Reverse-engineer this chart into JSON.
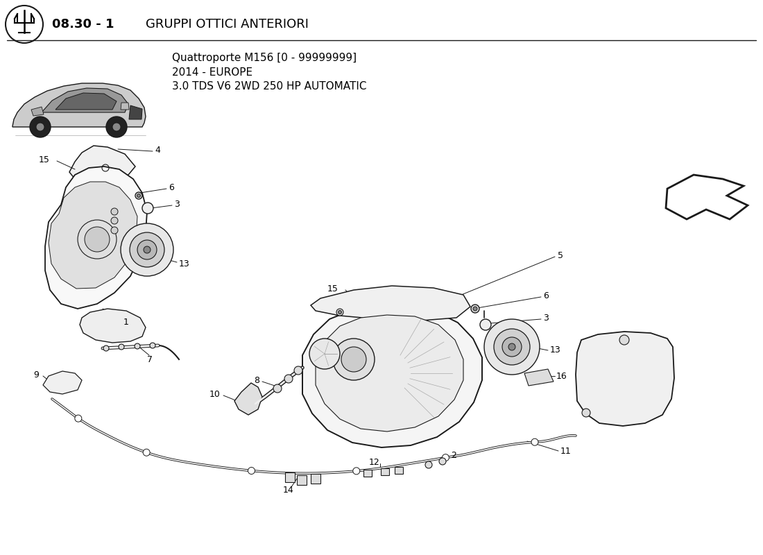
{
  "bg_color": "#ffffff",
  "title_bold": "08.30 - 1",
  "title_normal": "GRUPPI OTTICI ANTERIORI",
  "subtitle1": "Quattroporte M156 [0 - 99999999]",
  "subtitle2": "2014 - EUROPE",
  "subtitle3": "3.0 TDS V6 2WD 250 HP AUTOMATIC",
  "line_color": "#1a1a1a",
  "gray_fill": "#e8e8e8",
  "dark_fill": "#555555",
  "title_fontsize": 13,
  "subtitle_fontsize": 10,
  "label_fontsize": 9
}
